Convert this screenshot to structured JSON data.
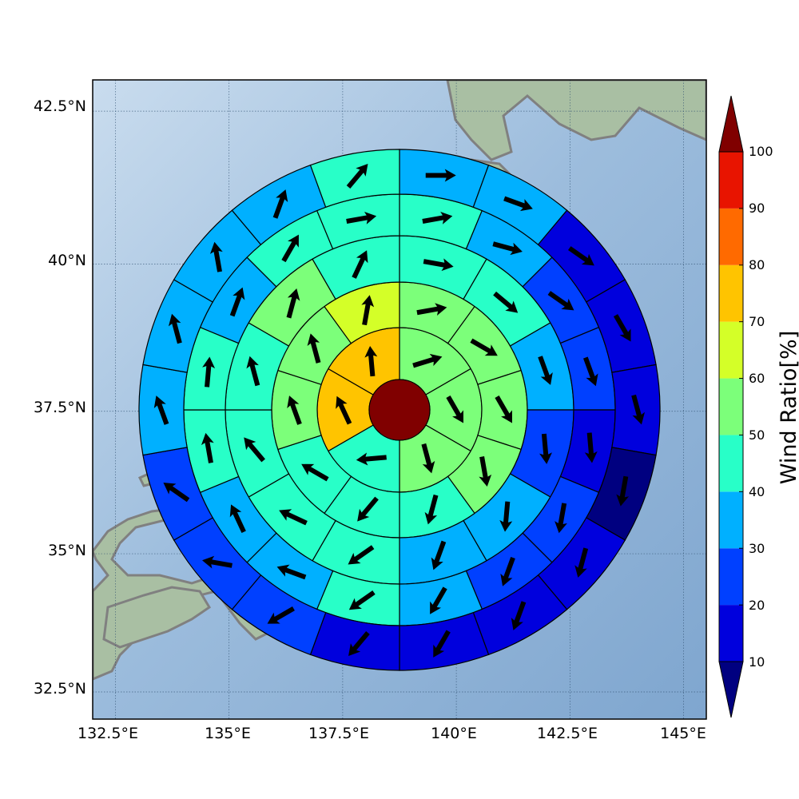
{
  "map": {
    "lon_range": [
      132.0,
      145.5
    ],
    "lat_range": [
      32.0,
      43.0
    ],
    "center": {
      "lon": 138.9,
      "lat": 37.5
    },
    "lat_ticks": [
      {
        "value": 42.5,
        "label": "42.5°N"
      },
      {
        "value": 40.0,
        "label": "40°N"
      },
      {
        "value": 37.5,
        "label": "37.5°N"
      },
      {
        "value": 35.0,
        "label": "35°N"
      },
      {
        "value": 32.5,
        "label": "32.5°N"
      }
    ],
    "lon_ticks": [
      {
        "value": 132.5,
        "label": "132.5°E"
      },
      {
        "value": 135.0,
        "label": "135°E"
      },
      {
        "value": 137.5,
        "label": "137.5°E"
      },
      {
        "value": 140.0,
        "label": "140°E"
      },
      {
        "value": 142.5,
        "label": "142.5°E"
      },
      {
        "value": 145.0,
        "label": "145°E"
      }
    ],
    "colors": {
      "ocean_light": "#d2e2f0",
      "ocean": "#8fb3d6",
      "land": "#a9bfa3",
      "coast": "#808080",
      "grid": "#2f4f6f",
      "arrow": "#000000",
      "ring_line": "#000000"
    }
  },
  "colorbar": {
    "title": "Wind Ratio[%]",
    "tick_labels": [
      "10",
      "20",
      "30",
      "40",
      "50",
      "60",
      "70",
      "80",
      "90",
      "100"
    ],
    "bins": [
      {
        "from": 10,
        "to": 20,
        "color": "#0000dd"
      },
      {
        "from": 20,
        "to": 30,
        "color": "#0040ff"
      },
      {
        "from": 30,
        "to": 40,
        "color": "#00b0ff"
      },
      {
        "from": 40,
        "to": 50,
        "color": "#28ffc8"
      },
      {
        "from": 50,
        "to": 60,
        "color": "#7cff7a"
      },
      {
        "from": 60,
        "to": 70,
        "color": "#d4ff28"
      },
      {
        "from": 70,
        "to": 80,
        "color": "#ffc400"
      },
      {
        "from": 80,
        "to": 90,
        "color": "#ff6a00"
      },
      {
        "from": 90,
        "to": 100,
        "color": "#e81400"
      }
    ],
    "under_color": "#000080",
    "over_color": "#800000"
  },
  "rings": [
    {
      "ring": 1,
      "sector_count": 6,
      "ratios": [
        55,
        55,
        55,
        45,
        75,
        75
      ],
      "wind_bearings_deg": [
        73,
        150,
        165,
        265,
        335,
        355
      ]
    },
    {
      "ring": 2,
      "sector_count": 10,
      "ratios": [
        55,
        55,
        55,
        55,
        45,
        45,
        45,
        55,
        55,
        65
      ],
      "wind_bearings_deg": [
        80,
        120,
        150,
        170,
        195,
        220,
        300,
        340,
        345,
        10
      ]
    },
    {
      "ring": 3,
      "sector_count": 12,
      "ratios": [
        45,
        45,
        35,
        25,
        35,
        35,
        45,
        45,
        45,
        45,
        55,
        45
      ],
      "wind_bearings_deg": [
        100,
        130,
        160,
        175,
        185,
        200,
        235,
        295,
        320,
        345,
        15,
        25
      ]
    },
    {
      "ring": 4,
      "sector_count": 16,
      "ratios": [
        45,
        35,
        25,
        25,
        15,
        25,
        25,
        35,
        45,
        35,
        35,
        45,
        45,
        35,
        45,
        45
      ],
      "wind_bearings_deg": [
        80,
        105,
        125,
        160,
        175,
        190,
        200,
        210,
        235,
        290,
        335,
        350,
        5,
        20,
        30,
        80
      ]
    },
    {
      "ring": 5,
      "sector_count": 18,
      "ratios": [
        35,
        35,
        15,
        15,
        15,
        5,
        15,
        15,
        15,
        15,
        25,
        25,
        25,
        35,
        35,
        35,
        35,
        45
      ],
      "wind_bearings_deg": [
        90,
        110,
        125,
        150,
        165,
        190,
        195,
        200,
        210,
        220,
        240,
        280,
        305,
        340,
        345,
        350,
        20,
        40
      ]
    }
  ]
}
